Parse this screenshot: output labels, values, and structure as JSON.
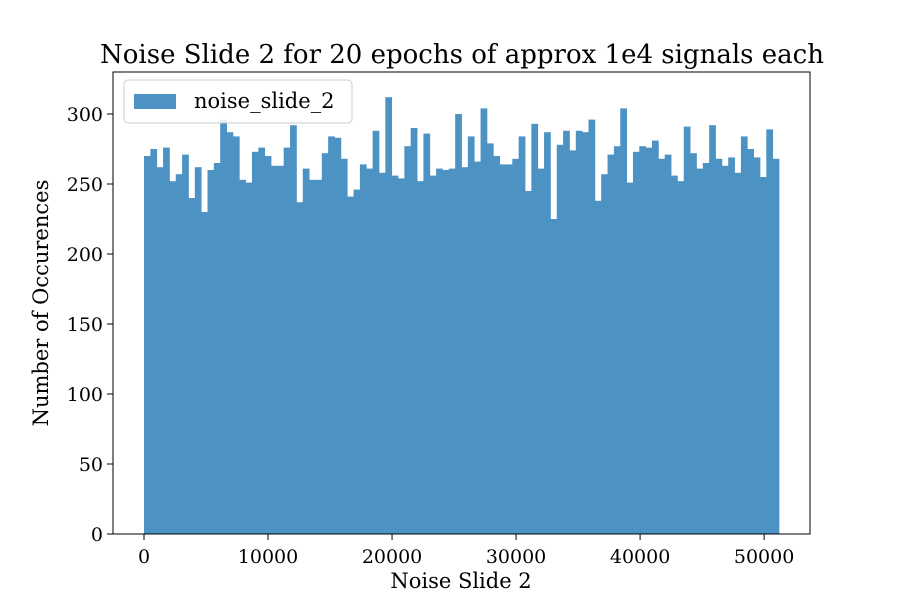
{
  "chart_data": {
    "type": "bar",
    "title": "Noise Slide 2 for 20 epochs of approx 1e4 signals each",
    "xlabel": "Noise Slide 2",
    "ylabel": "Number of Occurences",
    "xlim": [
      -2500,
      53700
    ],
    "ylim": [
      0,
      330
    ],
    "xticks": [
      0,
      10000,
      20000,
      30000,
      40000,
      50000
    ],
    "yticks": [
      0,
      50,
      100,
      150,
      200,
      250,
      300
    ],
    "xtick_labels": [
      "0",
      "10000",
      "20000",
      "30000",
      "40000",
      "50000"
    ],
    "ytick_labels": [
      "0",
      "50",
      "100",
      "150",
      "200",
      "250",
      "300"
    ],
    "bin_start": 0,
    "bin_width": 512,
    "grid": false,
    "legend_position": "top-left",
    "series": [
      {
        "name": "noise_slide_2",
        "color": "#4c92c3",
        "values": [
          270,
          275,
          262,
          276,
          252,
          257,
          271,
          240,
          262,
          230,
          260,
          265,
          296,
          287,
          284,
          253,
          251,
          273,
          276,
          270,
          263,
          263,
          276,
          292,
          237,
          261,
          253,
          253,
          272,
          284,
          283,
          268,
          241,
          246,
          264,
          261,
          288,
          258,
          312,
          256,
          254,
          277,
          290,
          252,
          286,
          256,
          261,
          260,
          261,
          300,
          262,
          284,
          266,
          304,
          279,
          270,
          264,
          264,
          268,
          284,
          245,
          293,
          261,
          287,
          225,
          278,
          288,
          274,
          288,
          287,
          296,
          238,
          257,
          271,
          277,
          304,
          251,
          273,
          277,
          276,
          281,
          268,
          271,
          256,
          252,
          291,
          272,
          261,
          265,
          292,
          268,
          263,
          269,
          258,
          284,
          275,
          269,
          255,
          289,
          268
        ]
      }
    ]
  }
}
